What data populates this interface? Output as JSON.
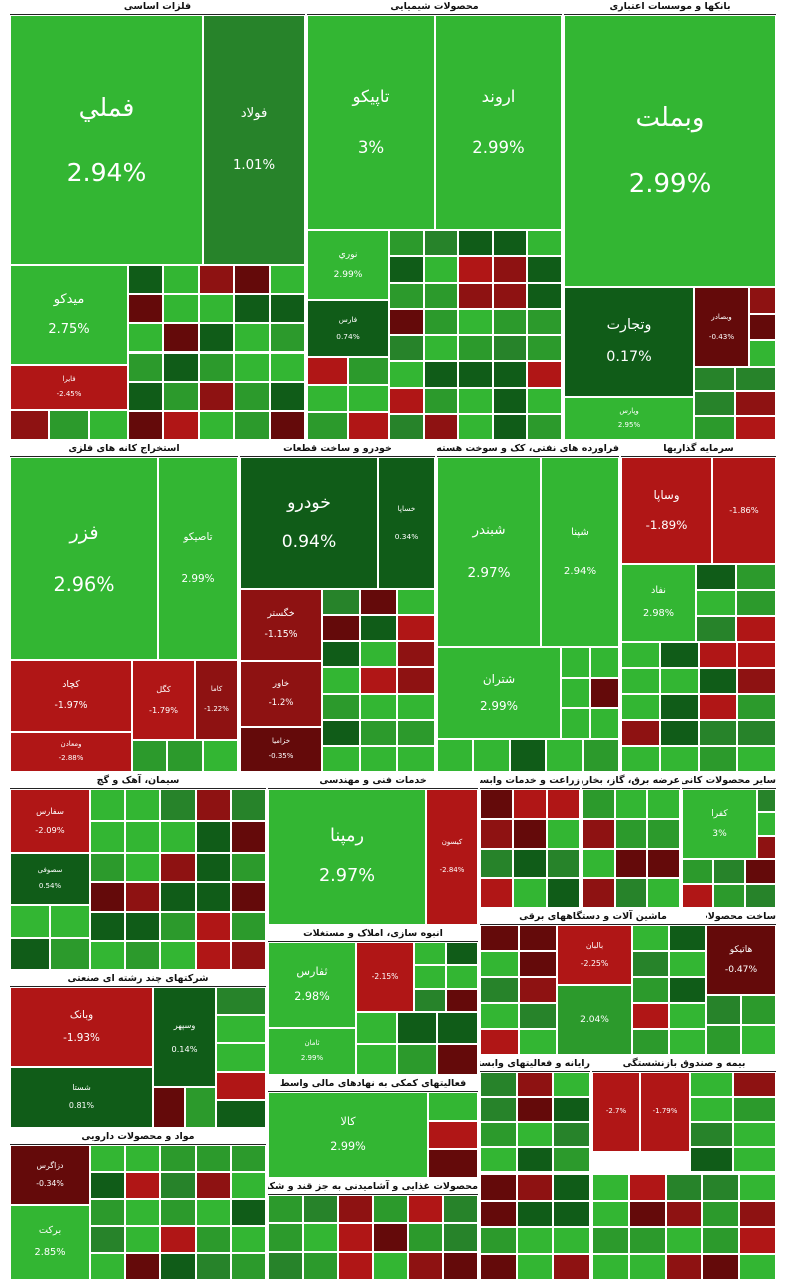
{
  "sectors": [
    {
      "title": "فلزات اساسی",
      "tiles": [
        {
          "name": "فملي",
          "change": "2.94%"
        },
        {
          "name": "فولاد",
          "change": "1.01%"
        },
        {
          "name": "میدکو",
          "change": "2.75%"
        },
        {
          "name": "فایرا",
          "change": "-2.45%"
        }
      ]
    },
    {
      "title": "محصولات شیمیایی",
      "tiles": [
        {
          "name": "تاپیکو",
          "change": "3%"
        },
        {
          "name": "اروند",
          "change": "2.99%"
        },
        {
          "name": "نوري",
          "change": "2.99%"
        },
        {
          "name": "فارس",
          "change": "0.74%"
        }
      ]
    },
    {
      "title": "بانکها و موسسات اعتباری",
      "tiles": [
        {
          "name": "وبملت",
          "change": "2.99%"
        },
        {
          "name": "وتجارت",
          "change": "0.17%"
        },
        {
          "name": "وپارس",
          "change": "2.95%"
        },
        {
          "name": "وبصادر",
          "change": "-0.43%"
        }
      ]
    },
    {
      "title": "استخراج کانه های فلزی",
      "tiles": [
        {
          "name": "فزر",
          "change": "2.96%"
        },
        {
          "name": "تاصیکو",
          "change": "2.99%"
        },
        {
          "name": "کچاد",
          "change": "-1.97%"
        },
        {
          "name": "کگل",
          "change": "-1.79%"
        },
        {
          "name": "کاما",
          "change": "-1.22%"
        },
        {
          "name": "ومعادن",
          "change": "-2.88%"
        }
      ]
    },
    {
      "title": "خودرو و ساخت قطعات",
      "tiles": [
        {
          "name": "خودرو",
          "change": "0.94%"
        },
        {
          "name": "خساپا",
          "change": "0.34%"
        },
        {
          "name": "خگستر",
          "change": "-1.15%"
        },
        {
          "name": "خاور",
          "change": "-1.2%"
        },
        {
          "name": "خزامیا",
          "change": "-0.35%"
        }
      ]
    },
    {
      "title": "فراورده های نفتی، کک و سوخت هسته ای",
      "tiles": [
        {
          "name": "شبندر",
          "change": "2.97%"
        },
        {
          "name": "شپنا",
          "change": "2.94%"
        },
        {
          "name": "شتران",
          "change": "2.99%"
        }
      ]
    },
    {
      "title": "سرمایه گذاریها",
      "tiles": [
        {
          "name": "وساپا",
          "change": "-1.89%"
        },
        {
          "change": "-1.86%"
        },
        {
          "name": "نفاد",
          "change": "2.98%"
        }
      ]
    },
    {
      "title": "سیمان، آهک و گچ",
      "tiles": [
        {
          "name": "سفارس",
          "change": "-2.09%"
        },
        {
          "name": "سصوفی",
          "change": "0.54%"
        }
      ]
    },
    {
      "title": "خدمات فنی و مهندسی",
      "tiles": [
        {
          "name": "رمپنا",
          "change": "2.97%"
        },
        {
          "name": "کیسون",
          "change": "-2.84%"
        }
      ]
    },
    {
      "title": "زراعت و خدمات وابسته",
      "tiles": []
    },
    {
      "title": "عرضه برق، گاز، بخاروآب گرم",
      "tiles": []
    },
    {
      "title": "سایر محصولات کانی غیرفلزی",
      "tiles": [
        {
          "name": "کفرا",
          "change": "3%"
        }
      ]
    },
    {
      "title": "انبوه سازی، املاک و مستغلات",
      "tiles": [
        {
          "name": "ثفارس",
          "change": "2.98%"
        },
        {
          "name": "ثامان",
          "change": "2.99%"
        },
        {
          "change": "-2.15%"
        }
      ]
    },
    {
      "title": "شرکتهای چند رشته ای صنعتی",
      "tiles": [
        {
          "name": "وبانک",
          "change": "-1.93%"
        },
        {
          "name": "شستا",
          "change": "0.81%"
        },
        {
          "name": "وسپهر",
          "change": "0.14%"
        }
      ]
    },
    {
      "title": "مواد و محصولات دارویی",
      "tiles": [
        {
          "name": "دزاگرس",
          "change": "-0.34%"
        },
        {
          "name": "برکت",
          "change": "2.85%"
        }
      ]
    },
    {
      "title": "فعالیتهای کمکی به نهادهای مالی واسط",
      "tiles": [
        {
          "name": "کالا",
          "change": "2.99%"
        }
      ]
    },
    {
      "title": "محصولات غذایی و آشامیدنی به جز قند و شکر",
      "tiles": []
    },
    {
      "title": "ماشین آلات و دستگاههای برقی",
      "tiles": [
        {
          "name": "بالبان",
          "change": "-2.25%"
        },
        {
          "change": "2.04%"
        }
      ]
    },
    {
      "title": "ساخت محصولات فلزی",
      "tiles": [
        {
          "name": "هاتیکو",
          "change": "-0.47%"
        }
      ]
    },
    {
      "title": "رایانه و فعالیتهای وابسته به آن",
      "tiles": []
    },
    {
      "title": "بیمه و صندوق بازنشستگی",
      "tiles": [
        {
          "change": "-2.7%"
        },
        {
          "change": "-1.79%"
        }
      ]
    }
  ]
}
